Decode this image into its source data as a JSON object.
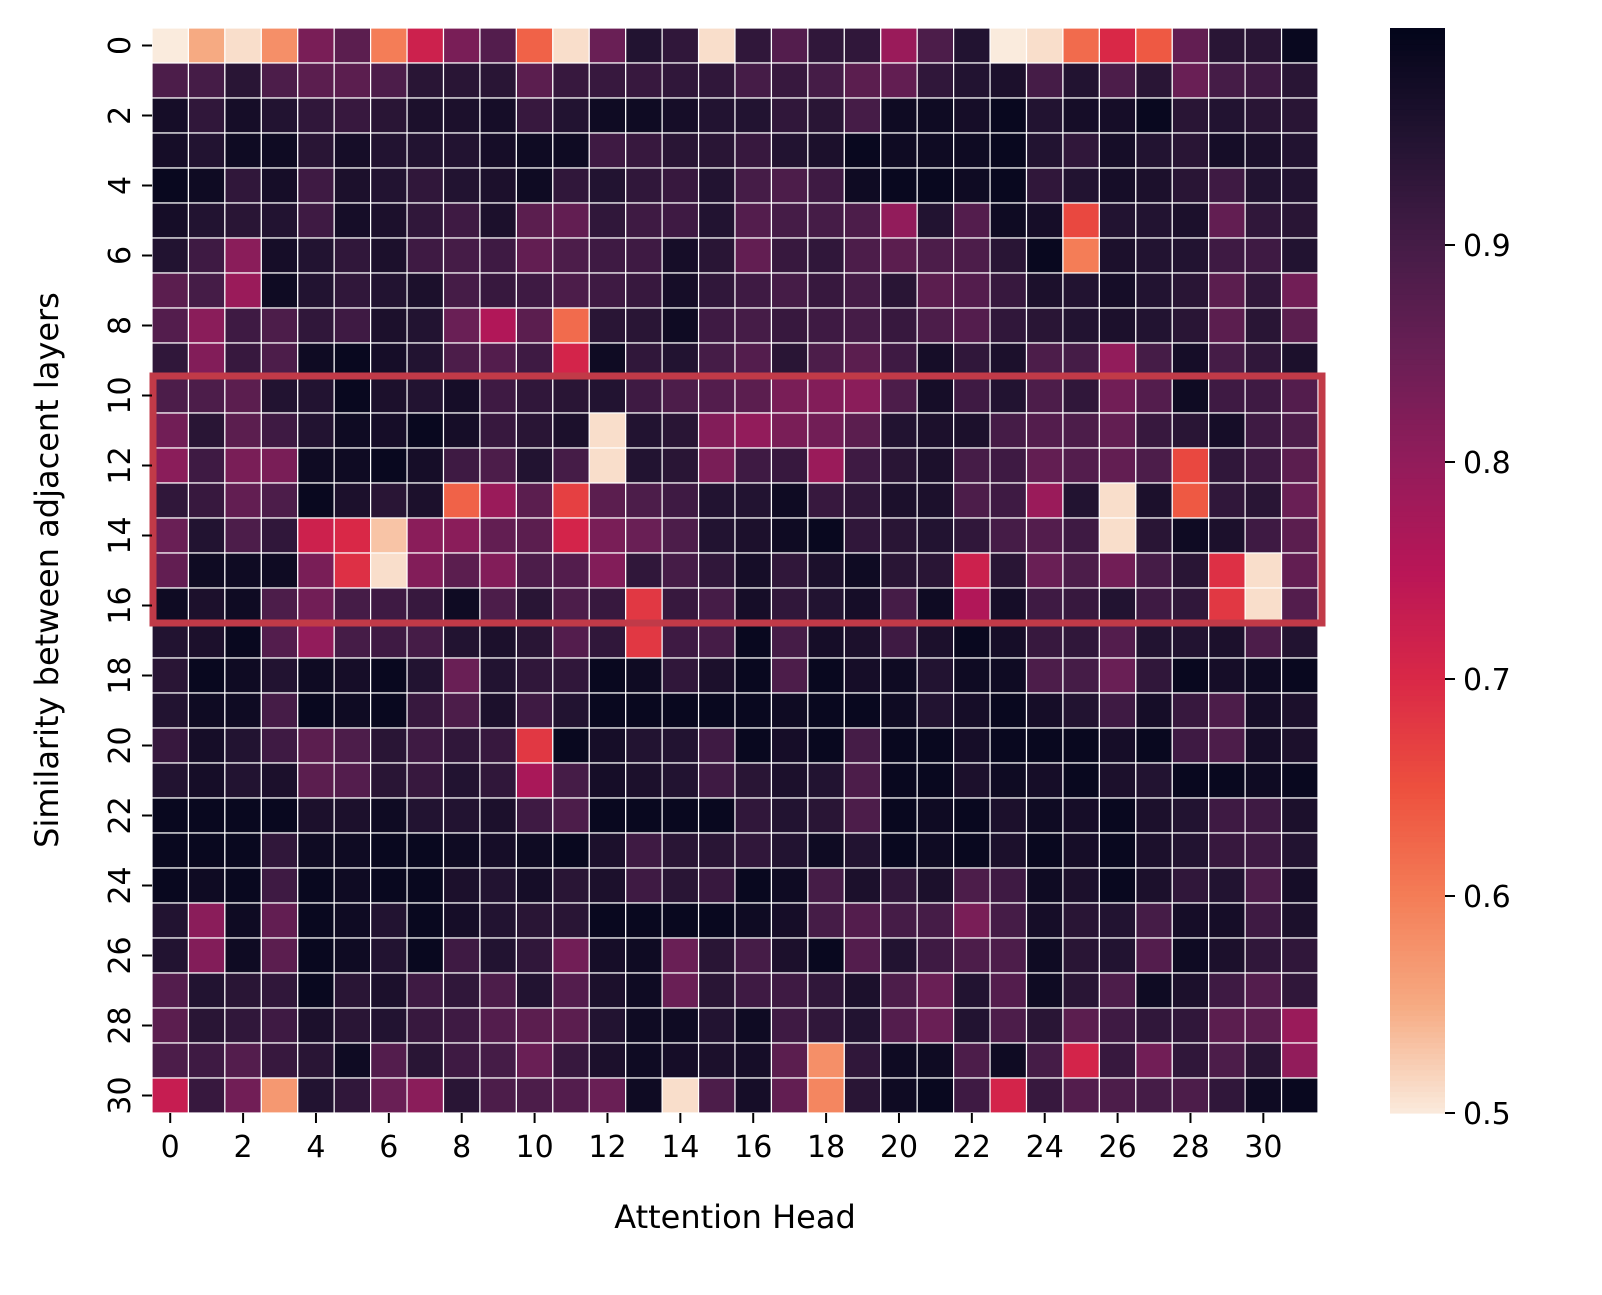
{
  "chart_data": {
    "type": "heatmap",
    "title": "",
    "xlabel": "Attention Head",
    "ylabel": "Similarity between adjacent layers",
    "x_tick_labels": [
      "0",
      "2",
      "4",
      "6",
      "8",
      "10",
      "12",
      "14",
      "16",
      "18",
      "20",
      "22",
      "24",
      "26",
      "28",
      "30"
    ],
    "y_tick_labels": [
      "0",
      "2",
      "4",
      "6",
      "8",
      "10",
      "12",
      "14",
      "16",
      "18",
      "20",
      "22",
      "24",
      "26",
      "28",
      "30"
    ],
    "colorbar": {
      "colormap": "rocket_r",
      "vmin": 0.5,
      "vmax": 1.0,
      "tick_labels": [
        "0.5",
        "0.6",
        "0.7",
        "0.8",
        "0.9"
      ],
      "ticks": [
        0.5,
        0.6,
        0.7,
        0.8,
        0.9
      ]
    },
    "grid": true,
    "annotations": [
      {
        "type": "rectangle",
        "rows": [
          10,
          16
        ],
        "cols": [
          0,
          31
        ],
        "color": "#c13a48"
      }
    ],
    "n_rows": 31,
    "n_cols": 32,
    "values": [
      [
        0.5,
        0.55,
        0.51,
        0.58,
        0.83,
        0.87,
        0.6,
        0.72,
        0.83,
        0.88,
        0.63,
        0.51,
        0.85,
        0.95,
        0.93,
        0.51,
        0.93,
        0.88,
        0.93,
        0.93,
        0.79,
        0.89,
        0.95,
        0.5,
        0.51,
        0.62,
        0.7,
        0.64,
        0.86,
        0.94,
        0.94,
        0.99
      ],
      [
        0.89,
        0.9,
        0.94,
        0.89,
        0.87,
        0.87,
        0.89,
        0.94,
        0.94,
        0.94,
        0.87,
        0.92,
        0.92,
        0.92,
        0.93,
        0.93,
        0.9,
        0.92,
        0.9,
        0.87,
        0.86,
        0.93,
        0.95,
        0.96,
        0.9,
        0.95,
        0.89,
        0.94,
        0.85,
        0.9,
        0.91,
        0.94
      ],
      [
        0.97,
        0.93,
        0.97,
        0.95,
        0.93,
        0.92,
        0.94,
        0.96,
        0.96,
        0.97,
        0.92,
        0.95,
        0.98,
        0.98,
        0.97,
        0.95,
        0.95,
        0.93,
        0.94,
        0.9,
        0.98,
        0.98,
        0.97,
        0.99,
        0.95,
        0.97,
        0.97,
        0.99,
        0.94,
        0.95,
        0.94,
        0.94
      ],
      [
        0.97,
        0.95,
        0.98,
        0.98,
        0.94,
        0.97,
        0.95,
        0.95,
        0.95,
        0.97,
        0.98,
        0.98,
        0.91,
        0.92,
        0.94,
        0.94,
        0.92,
        0.95,
        0.96,
        0.99,
        0.98,
        0.98,
        0.98,
        0.99,
        0.95,
        0.93,
        0.97,
        0.95,
        0.94,
        0.97,
        0.96,
        0.95
      ],
      [
        0.99,
        0.98,
        0.93,
        0.97,
        0.91,
        0.96,
        0.95,
        0.93,
        0.95,
        0.96,
        0.98,
        0.93,
        0.95,
        0.93,
        0.92,
        0.95,
        0.9,
        0.89,
        0.91,
        0.98,
        0.99,
        0.99,
        0.98,
        0.99,
        0.93,
        0.95,
        0.97,
        0.96,
        0.94,
        0.91,
        0.95,
        0.95
      ],
      [
        0.97,
        0.95,
        0.94,
        0.95,
        0.91,
        0.97,
        0.96,
        0.93,
        0.91,
        0.96,
        0.87,
        0.86,
        0.93,
        0.91,
        0.91,
        0.95,
        0.88,
        0.9,
        0.9,
        0.89,
        0.8,
        0.95,
        0.88,
        0.98,
        0.97,
        0.66,
        0.95,
        0.95,
        0.96,
        0.86,
        0.93,
        0.94
      ],
      [
        0.95,
        0.91,
        0.81,
        0.97,
        0.95,
        0.93,
        0.96,
        0.91,
        0.9,
        0.91,
        0.86,
        0.89,
        0.91,
        0.91,
        0.97,
        0.94,
        0.86,
        0.92,
        0.93,
        0.89,
        0.87,
        0.89,
        0.89,
        0.94,
        0.99,
        0.6,
        0.96,
        0.95,
        0.95,
        0.91,
        0.91,
        0.95
      ],
      [
        0.87,
        0.9,
        0.79,
        0.98,
        0.95,
        0.93,
        0.95,
        0.96,
        0.9,
        0.92,
        0.91,
        0.89,
        0.91,
        0.92,
        0.97,
        0.93,
        0.91,
        0.9,
        0.92,
        0.9,
        0.94,
        0.87,
        0.88,
        0.92,
        0.96,
        0.95,
        0.97,
        0.95,
        0.94,
        0.87,
        0.93,
        0.84
      ],
      [
        0.88,
        0.81,
        0.91,
        0.89,
        0.93,
        0.91,
        0.96,
        0.95,
        0.85,
        0.76,
        0.87,
        0.62,
        0.94,
        0.94,
        0.98,
        0.91,
        0.9,
        0.92,
        0.91,
        0.9,
        0.92,
        0.89,
        0.88,
        0.93,
        0.94,
        0.95,
        0.96,
        0.95,
        0.94,
        0.87,
        0.94,
        0.87
      ],
      [
        0.93,
        0.82,
        0.92,
        0.89,
        0.98,
        0.99,
        0.97,
        0.95,
        0.89,
        0.88,
        0.91,
        0.71,
        0.98,
        0.93,
        0.95,
        0.9,
        0.88,
        0.94,
        0.89,
        0.87,
        0.91,
        0.97,
        0.93,
        0.96,
        0.89,
        0.9,
        0.8,
        0.9,
        0.97,
        0.9,
        0.93,
        0.96
      ],
      [
        0.89,
        0.89,
        0.87,
        0.95,
        0.95,
        0.99,
        0.96,
        0.95,
        0.97,
        0.91,
        0.93,
        0.94,
        0.95,
        0.91,
        0.89,
        0.88,
        0.87,
        0.83,
        0.82,
        0.81,
        0.89,
        0.97,
        0.91,
        0.95,
        0.89,
        0.93,
        0.84,
        0.88,
        0.98,
        0.91,
        0.91,
        0.88
      ],
      [
        0.84,
        0.94,
        0.87,
        0.91,
        0.95,
        0.98,
        0.97,
        0.99,
        0.97,
        0.92,
        0.94,
        0.96,
        0.51,
        0.95,
        0.94,
        0.82,
        0.8,
        0.83,
        0.84,
        0.87,
        0.95,
        0.96,
        0.96,
        0.9,
        0.88,
        0.89,
        0.86,
        0.92,
        0.94,
        0.97,
        0.91,
        0.89
      ],
      [
        0.81,
        0.91,
        0.83,
        0.83,
        0.98,
        0.98,
        0.99,
        0.97,
        0.91,
        0.89,
        0.95,
        0.9,
        0.51,
        0.95,
        0.94,
        0.83,
        0.91,
        0.92,
        0.79,
        0.91,
        0.94,
        0.96,
        0.9,
        0.91,
        0.86,
        0.88,
        0.86,
        0.89,
        0.66,
        0.93,
        0.91,
        0.87
      ],
      [
        0.93,
        0.92,
        0.86,
        0.89,
        0.99,
        0.96,
        0.94,
        0.96,
        0.63,
        0.79,
        0.87,
        0.67,
        0.87,
        0.89,
        0.91,
        0.95,
        0.95,
        0.98,
        0.92,
        0.93,
        0.96,
        0.96,
        0.89,
        0.91,
        0.79,
        0.95,
        0.51,
        0.96,
        0.64,
        0.93,
        0.94,
        0.85
      ],
      [
        0.85,
        0.95,
        0.89,
        0.93,
        0.72,
        0.7,
        0.53,
        0.81,
        0.81,
        0.86,
        0.87,
        0.71,
        0.83,
        0.85,
        0.89,
        0.95,
        0.96,
        0.98,
        0.99,
        0.93,
        0.94,
        0.95,
        0.93,
        0.9,
        0.88,
        0.91,
        0.51,
        0.94,
        0.98,
        0.96,
        0.91,
        0.87
      ],
      [
        0.86,
        0.98,
        0.98,
        0.98,
        0.83,
        0.69,
        0.51,
        0.82,
        0.87,
        0.82,
        0.89,
        0.88,
        0.82,
        0.93,
        0.9,
        0.93,
        0.97,
        0.93,
        0.96,
        0.98,
        0.94,
        0.94,
        0.72,
        0.94,
        0.85,
        0.89,
        0.84,
        0.9,
        0.94,
        0.69,
        0.51,
        0.86
      ],
      [
        0.98,
        0.96,
        0.98,
        0.89,
        0.84,
        0.9,
        0.91,
        0.92,
        0.98,
        0.89,
        0.94,
        0.89,
        0.92,
        0.68,
        0.92,
        0.9,
        0.97,
        0.93,
        0.95,
        0.97,
        0.9,
        0.98,
        0.76,
        0.97,
        0.91,
        0.92,
        0.95,
        0.91,
        0.93,
        0.68,
        0.51,
        0.88
      ],
      [
        0.95,
        0.96,
        0.99,
        0.88,
        0.8,
        0.9,
        0.91,
        0.9,
        0.95,
        0.96,
        0.94,
        0.88,
        0.93,
        0.68,
        0.91,
        0.9,
        0.99,
        0.9,
        0.97,
        0.96,
        0.91,
        0.96,
        0.99,
        0.97,
        0.92,
        0.93,
        0.88,
        0.95,
        0.95,
        0.96,
        0.89,
        0.95
      ],
      [
        0.94,
        0.99,
        0.98,
        0.95,
        0.98,
        0.97,
        0.99,
        0.95,
        0.85,
        0.95,
        0.93,
        0.93,
        0.99,
        0.98,
        0.93,
        0.96,
        0.99,
        0.89,
        0.99,
        0.97,
        0.98,
        0.95,
        0.98,
        0.98,
        0.89,
        0.9,
        0.85,
        0.93,
        0.99,
        0.97,
        0.98,
        0.99
      ],
      [
        0.95,
        0.98,
        0.98,
        0.9,
        0.99,
        0.98,
        0.99,
        0.92,
        0.89,
        0.96,
        0.91,
        0.95,
        0.99,
        0.99,
        0.99,
        0.99,
        0.99,
        0.98,
        0.99,
        0.99,
        0.98,
        0.95,
        0.97,
        0.99,
        0.97,
        0.95,
        0.91,
        0.97,
        0.92,
        0.89,
        0.97,
        0.96
      ],
      [
        0.92,
        0.97,
        0.95,
        0.91,
        0.87,
        0.89,
        0.94,
        0.91,
        0.93,
        0.92,
        0.68,
        0.99,
        0.97,
        0.95,
        0.95,
        0.91,
        0.99,
        0.97,
        0.99,
        0.9,
        0.99,
        0.99,
        0.97,
        0.99,
        0.99,
        0.99,
        0.97,
        0.99,
        0.91,
        0.89,
        0.97,
        0.96
      ],
      [
        0.95,
        0.97,
        0.95,
        0.96,
        0.87,
        0.88,
        0.94,
        0.92,
        0.95,
        0.93,
        0.77,
        0.9,
        0.97,
        0.96,
        0.95,
        0.91,
        0.94,
        0.96,
        0.95,
        0.89,
        0.99,
        0.99,
        0.96,
        0.98,
        0.97,
        0.99,
        0.96,
        0.95,
        0.99,
        0.99,
        0.98,
        0.99
      ],
      [
        0.99,
        0.99,
        0.99,
        0.99,
        0.96,
        0.96,
        0.98,
        0.95,
        0.95,
        0.96,
        0.91,
        0.89,
        0.99,
        0.99,
        0.99,
        0.99,
        0.93,
        0.95,
        0.94,
        0.89,
        0.99,
        0.98,
        0.99,
        0.96,
        0.98,
        0.97,
        0.99,
        0.96,
        0.95,
        0.91,
        0.91,
        0.96
      ],
      [
        0.99,
        0.99,
        0.99,
        0.93,
        0.98,
        0.98,
        0.99,
        0.99,
        0.98,
        0.97,
        0.98,
        0.99,
        0.96,
        0.91,
        0.94,
        0.94,
        0.93,
        0.95,
        0.98,
        0.95,
        0.99,
        0.98,
        0.99,
        0.96,
        0.99,
        0.97,
        0.99,
        0.96,
        0.95,
        0.92,
        0.91,
        0.95
      ],
      [
        0.99,
        0.98,
        0.99,
        0.91,
        0.99,
        0.98,
        0.99,
        0.99,
        0.96,
        0.95,
        0.97,
        0.94,
        0.96,
        0.91,
        0.94,
        0.92,
        0.99,
        0.98,
        0.9,
        0.96,
        0.93,
        0.96,
        0.89,
        0.91,
        0.98,
        0.96,
        0.99,
        0.96,
        0.93,
        0.95,
        0.89,
        0.97
      ],
      [
        0.95,
        0.81,
        0.98,
        0.86,
        0.99,
        0.98,
        0.95,
        0.99,
        0.97,
        0.95,
        0.94,
        0.94,
        0.99,
        0.99,
        0.99,
        0.99,
        0.98,
        0.97,
        0.9,
        0.88,
        0.9,
        0.9,
        0.83,
        0.9,
        0.97,
        0.94,
        0.95,
        0.9,
        0.97,
        0.97,
        0.91,
        0.96
      ],
      [
        0.95,
        0.82,
        0.98,
        0.87,
        0.99,
        0.98,
        0.95,
        0.99,
        0.91,
        0.95,
        0.93,
        0.84,
        0.97,
        0.98,
        0.85,
        0.94,
        0.9,
        0.96,
        0.99,
        0.88,
        0.95,
        0.91,
        0.89,
        0.89,
        0.98,
        0.94,
        0.95,
        0.88,
        0.98,
        0.96,
        0.93,
        0.93
      ],
      [
        0.88,
        0.95,
        0.94,
        0.93,
        0.99,
        0.94,
        0.96,
        0.91,
        0.93,
        0.89,
        0.95,
        0.88,
        0.96,
        0.98,
        0.85,
        0.94,
        0.91,
        0.91,
        0.93,
        0.96,
        0.89,
        0.85,
        0.95,
        0.88,
        0.98,
        0.94,
        0.89,
        0.98,
        0.96,
        0.91,
        0.88,
        0.93
      ],
      [
        0.87,
        0.94,
        0.93,
        0.91,
        0.96,
        0.94,
        0.95,
        0.92,
        0.91,
        0.88,
        0.87,
        0.87,
        0.95,
        0.98,
        0.98,
        0.95,
        0.98,
        0.91,
        0.93,
        0.95,
        0.88,
        0.85,
        0.95,
        0.89,
        0.94,
        0.87,
        0.91,
        0.93,
        0.93,
        0.87,
        0.87,
        0.79
      ],
      [
        0.89,
        0.91,
        0.88,
        0.92,
        0.94,
        0.98,
        0.88,
        0.94,
        0.91,
        0.9,
        0.85,
        0.92,
        0.96,
        0.98,
        0.97,
        0.96,
        0.97,
        0.87,
        0.58,
        0.93,
        0.98,
        0.98,
        0.89,
        0.98,
        0.9,
        0.71,
        0.92,
        0.84,
        0.93,
        0.89,
        0.94,
        0.8
      ],
      [
        0.73,
        0.92,
        0.84,
        0.57,
        0.95,
        0.93,
        0.85,
        0.81,
        0.94,
        0.89,
        0.89,
        0.88,
        0.85,
        0.98,
        0.51,
        0.89,
        0.97,
        0.86,
        0.59,
        0.94,
        0.98,
        0.99,
        0.91,
        0.71,
        0.92,
        0.88,
        0.89,
        0.9,
        0.89,
        0.93,
        0.98,
        0.99
      ]
    ]
  }
}
